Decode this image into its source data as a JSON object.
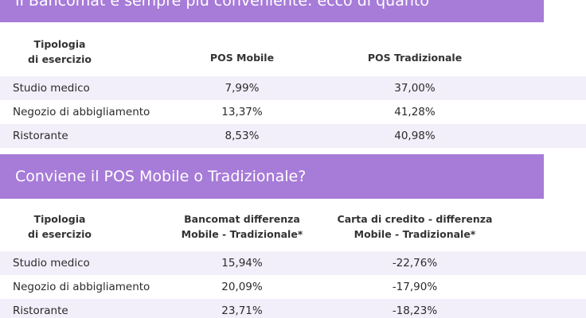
{
  "section1": {
    "title": "Il Bancomat è sempre più conveniente: ecco di quanto",
    "headers": [
      "Tipologia\ndi esercizio",
      "POS Mobile",
      "POS Tradizionale"
    ],
    "rows": [
      [
        "Studio medico",
        "7,99%",
        "37,00%"
      ],
      [
        "Negozio di abbigliamento",
        "13,37%",
        "41,28%"
      ],
      [
        "Ristorante",
        "8,53%",
        "40,98%"
      ]
    ]
  },
  "section2": {
    "title": "Conviene il POS Mobile o Tradizionale?",
    "headers": [
      "Tipologia\ndi esercizio",
      "Bancomat differenza\nMobile - Tradizionale*",
      "Carta di credito - differenza\nMobile - Tradizionale*"
    ],
    "rows": [
      [
        "Studio medico",
        "15,94%",
        "-22,76%"
      ],
      [
        "Negozio di abbigliamento",
        "20,09%",
        "-17,90%"
      ],
      [
        "Ristorante",
        "23,71%",
        "-18,23%"
      ]
    ]
  },
  "colors": {
    "banner": "#a77bd8",
    "row_shade": "#f2effa"
  }
}
